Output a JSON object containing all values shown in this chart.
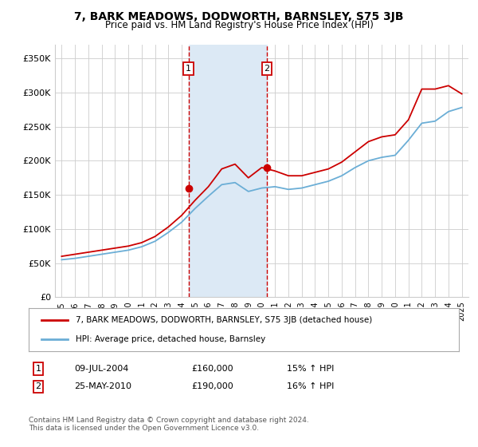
{
  "title": "7, BARK MEADOWS, DODWORTH, BARNSLEY, S75 3JB",
  "subtitle": "Price paid vs. HM Land Registry's House Price Index (HPI)",
  "ylabel_ticks": [
    "£0",
    "£50K",
    "£100K",
    "£150K",
    "£200K",
    "£250K",
    "£300K",
    "£350K"
  ],
  "ytick_values": [
    0,
    50000,
    100000,
    150000,
    200000,
    250000,
    300000,
    350000
  ],
  "ylim": [
    0,
    370000
  ],
  "purchase1_date": "09-JUL-2004",
  "purchase1_price": 160000,
  "purchase1_year": 2004.52,
  "purchase2_date": "25-MAY-2010",
  "purchase2_price": 190000,
  "purchase2_year": 2010.39,
  "legend_line1": "7, BARK MEADOWS, DODWORTH, BARNSLEY, S75 3JB (detached house)",
  "legend_line2": "HPI: Average price, detached house, Barnsley",
  "footer": "Contains HM Land Registry data © Crown copyright and database right 2024.\nThis data is licensed under the Open Government Licence v3.0.",
  "hpi_color": "#6baed6",
  "price_color": "#cc0000",
  "shade_color": "#dce9f5",
  "box_color": "#cc0000",
  "background_color": "#ffffff",
  "grid_color": "#cccccc",
  "years_hpi": [
    1995,
    1996,
    1997,
    1998,
    1999,
    2000,
    2001,
    2002,
    2003,
    2004,
    2005,
    2006,
    2007,
    2008,
    2009,
    2010,
    2011,
    2012,
    2013,
    2014,
    2015,
    2016,
    2017,
    2018,
    2019,
    2020,
    2021,
    2022,
    2023,
    2024,
    2025
  ],
  "hpi_values": [
    55000,
    57000,
    60000,
    63000,
    66000,
    69000,
    74000,
    82000,
    95000,
    110000,
    130000,
    148000,
    165000,
    168000,
    155000,
    160000,
    162000,
    158000,
    160000,
    165000,
    170000,
    178000,
    190000,
    200000,
    205000,
    208000,
    230000,
    255000,
    258000,
    272000,
    278000
  ],
  "price_values": [
    60000,
    63000,
    66000,
    69000,
    72000,
    75000,
    80000,
    89000,
    103000,
    120000,
    142000,
    162000,
    188000,
    195000,
    175000,
    190000,
    185000,
    178000,
    178000,
    183000,
    188000,
    198000,
    213000,
    228000,
    235000,
    238000,
    260000,
    305000,
    305000,
    310000,
    298000
  ]
}
